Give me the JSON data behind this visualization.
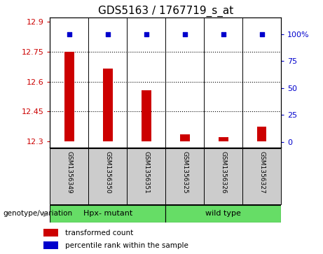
{
  "title": "GDS5163 / 1767719_s_at",
  "samples": [
    "GSM1356349",
    "GSM1356350",
    "GSM1356351",
    "GSM1356325",
    "GSM1356326",
    "GSM1356327"
  ],
  "bar_values": [
    12.75,
    12.665,
    12.555,
    12.335,
    12.32,
    12.375
  ],
  "percentile_values": [
    100,
    100,
    100,
    100,
    100,
    100
  ],
  "ymin": 12.3,
  "ymax": 12.9,
  "yticks_left": [
    12.3,
    12.45,
    12.6,
    12.75,
    12.9
  ],
  "yticks_right": [
    0,
    25,
    50,
    75,
    100
  ],
  "bar_color": "#cc0000",
  "dot_color": "#0000cc",
  "bar_bottom": 12.3,
  "groups": [
    {
      "label": "Hpx- mutant",
      "start": 0,
      "end": 3,
      "color": "#66dd66"
    },
    {
      "label": "wild type",
      "start": 3,
      "end": 6,
      "color": "#66dd66"
    }
  ],
  "genotype_label": "genotype/variation",
  "legend_bar_label": "transformed count",
  "legend_dot_label": "percentile rank within the sample",
  "title_fontsize": 11,
  "tick_fontsize": 8,
  "label_fontsize": 8,
  "grid_color": "#000000",
  "bg_color": "#cccccc",
  "plot_bg": "#ffffff",
  "bar_width": 0.25
}
